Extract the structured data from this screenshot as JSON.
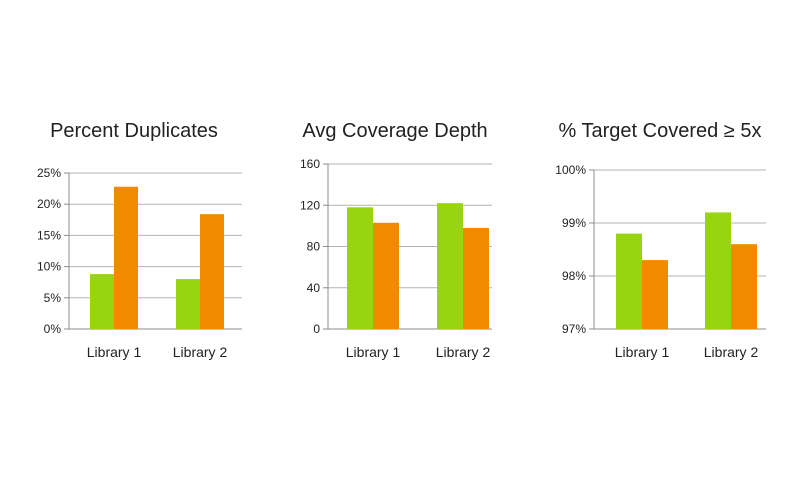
{
  "colors": {
    "series_a": "#99d411",
    "series_b": "#f28a00"
  },
  "chart_data": [
    {
      "type": "bar",
      "title": "Percent Duplicates",
      "categories": [
        "Library 1",
        "Library 2"
      ],
      "series": [
        {
          "values": [
            8.8,
            8.0
          ]
        },
        {
          "values": [
            22.8,
            18.4
          ]
        }
      ],
      "ylim": [
        0,
        25
      ],
      "yticks": [
        0,
        5,
        10,
        15,
        20,
        25
      ],
      "ytick_labels": [
        "0%",
        "5%",
        "10%",
        "15%",
        "20%",
        "25%"
      ],
      "xlabel": "",
      "ylabel": "",
      "grid": true,
      "legend": "none"
    },
    {
      "type": "bar",
      "title": "Avg Coverage Depth",
      "categories": [
        "Library 1",
        "Library 2"
      ],
      "series": [
        {
          "values": [
            118,
            122
          ]
        },
        {
          "values": [
            103,
            98
          ]
        }
      ],
      "ylim": [
        0,
        160
      ],
      "yticks": [
        0,
        40,
        80,
        120,
        160
      ],
      "ytick_labels": [
        "0",
        "40",
        "80",
        "120",
        "160"
      ],
      "xlabel": "",
      "ylabel": "",
      "grid": true,
      "legend": "none"
    },
    {
      "type": "bar",
      "title": "% Target Covered ≥ 5x",
      "categories": [
        "Library 1",
        "Library 2"
      ],
      "series": [
        {
          "values": [
            98.8,
            99.2
          ]
        },
        {
          "values": [
            98.3,
            98.6
          ]
        }
      ],
      "ylim": [
        97,
        100
      ],
      "yticks": [
        97,
        98,
        99,
        100
      ],
      "ytick_labels": [
        "97%",
        "98%",
        "99%",
        "100%"
      ],
      "xlabel": "",
      "ylabel": "",
      "grid": true,
      "legend": "none"
    }
  ]
}
